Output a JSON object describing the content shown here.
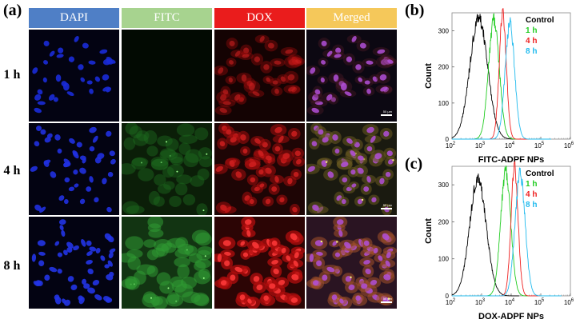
{
  "panel_a": {
    "label": "(a)",
    "columns": [
      {
        "name": "DAPI",
        "color": "#4f7fc6",
        "text_color": "#ffffff"
      },
      {
        "name": "FITC",
        "color": "#a7d38f",
        "text_color": "#ffffff"
      },
      {
        "name": "DOX",
        "color": "#ea1c1c",
        "text_color": "#ffffff"
      },
      {
        "name": "Merged",
        "color": "#f5c85a",
        "text_color": "#ffffff"
      }
    ],
    "rows": [
      "1 h",
      "4 h",
      "8 h"
    ],
    "scale_bar_text": "50 µm"
  },
  "panel_b": {
    "label": "(b)"
  },
  "panel_c": {
    "label": "(c)"
  },
  "chart_data": [
    {
      "type": "line",
      "panel": "(b)",
      "xlabel": "FITC-ADPF NPs",
      "ylabel": "Count",
      "x_scale": "log",
      "xlim": [
        100,
        1000000
      ],
      "ylim": [
        0,
        350
      ],
      "y_ticks": [
        0,
        100,
        200,
        300
      ],
      "x_ticks": [
        "10^2",
        "10^3",
        "10^4",
        "10^5",
        "10^6"
      ],
      "legend_position": "top-right",
      "series": [
        {
          "name": "Control",
          "color": "#000000",
          "peak_x": 800,
          "peak_count": 335,
          "width": 0.3
        },
        {
          "name": "1 h",
          "color": "#22cc22",
          "peak_x": 2600,
          "peak_count": 330,
          "width": 0.18
        },
        {
          "name": "4 h",
          "color": "#ee2222",
          "peak_x": 5200,
          "peak_count": 345,
          "width": 0.12
        },
        {
          "name": "8 h",
          "color": "#22bbee",
          "peak_x": 9000,
          "peak_count": 320,
          "width": 0.16
        }
      ]
    },
    {
      "type": "line",
      "panel": "(c)",
      "xlabel": "DOX-ADPF NPs",
      "ylabel": "Count",
      "x_scale": "log",
      "xlim": [
        100,
        1000000
      ],
      "ylim": [
        0,
        350
      ],
      "y_ticks": [
        0,
        100,
        200,
        300
      ],
      "x_ticks": [
        "10^2",
        "10^3",
        "10^4",
        "10^5",
        "10^6"
      ],
      "legend_position": "top-right",
      "series": [
        {
          "name": "Control",
          "color": "#000000",
          "peak_x": 750,
          "peak_count": 315,
          "width": 0.28
        },
        {
          "name": "1 h",
          "color": "#22cc22",
          "peak_x": 6500,
          "peak_count": 335,
          "width": 0.17
        },
        {
          "name": "4 h",
          "color": "#ee2222",
          "peak_x": 13000,
          "peak_count": 345,
          "width": 0.12
        },
        {
          "name": "8 h",
          "color": "#22bbee",
          "peak_x": 20000,
          "peak_count": 330,
          "width": 0.17
        }
      ]
    }
  ]
}
